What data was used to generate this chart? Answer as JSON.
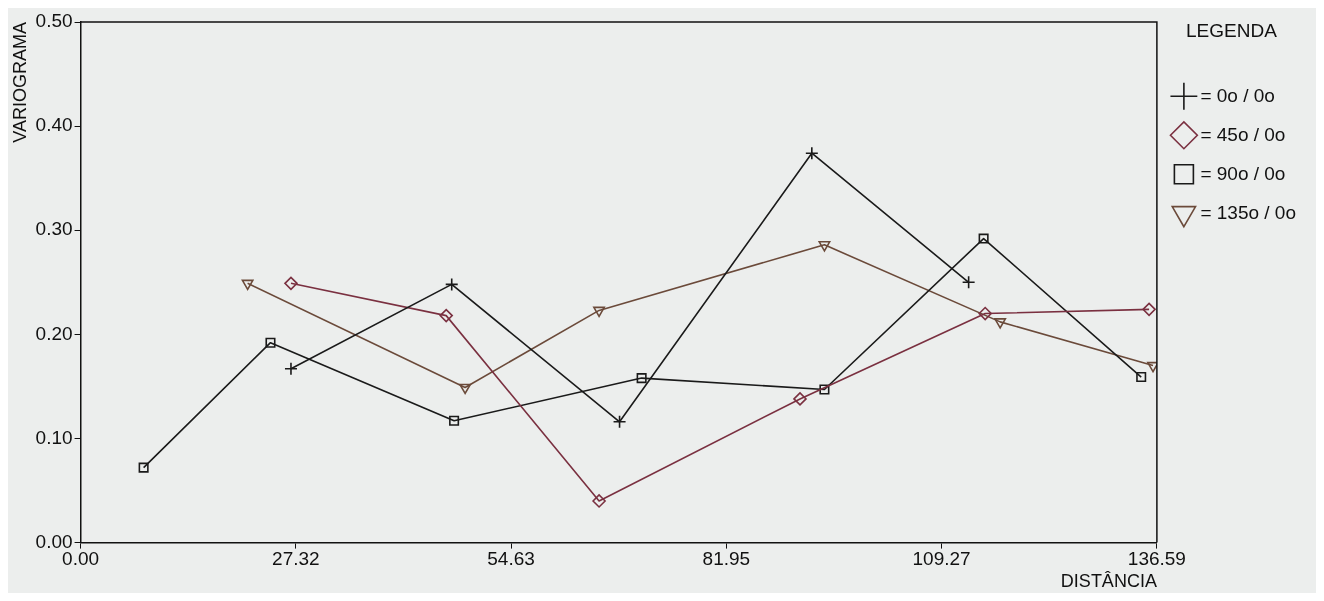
{
  "chart_data": {
    "type": "line",
    "xlabel": "DISTÂNCIA",
    "ylabel": "VARIOGRAMA",
    "legend_title": "LEGENDA",
    "legend": "right",
    "grid": false,
    "line_style": "solid",
    "xlim": [
      0,
      136.59
    ],
    "xticks": [
      {
        "value": 0,
        "label": "0.00"
      },
      27.32,
      54.63,
      81.95,
      109.27,
      136.59
    ],
    "ylim": [
      0,
      0.5
    ],
    "yticks": [
      {
        "value": 0,
        "label": "0.00"
      },
      {
        "value": 0.1,
        "label": "0.10"
      },
      {
        "value": 0.2,
        "label": "0.20"
      },
      {
        "value": 0.3,
        "label": "0.30"
      },
      {
        "value": 0.4,
        "label": "0.40"
      },
      {
        "value": 0.5,
        "label": "0.50"
      }
    ],
    "series": [
      {
        "name": "= 0o / 0o",
        "color": "#1a1a1a",
        "marker": "cross",
        "x": [
          26.7,
          47.1,
          68.4,
          92.8,
          112.7
        ],
        "values": [
          0.167,
          0.248,
          0.116,
          0.374,
          0.25
        ]
      },
      {
        "name": "= 45o / 0o",
        "color": "#7a3040",
        "marker": "diamond",
        "x": [
          26.7,
          46.4,
          65.8,
          91.3,
          114.8,
          135.6
        ],
        "values": [
          0.249,
          0.218,
          0.04,
          0.138,
          0.22,
          0.224
        ]
      },
      {
        "name": "= 90o / 0o",
        "color": "#1a1a1a",
        "marker": "square",
        "x": [
          8.0,
          24.1,
          47.4,
          71.2,
          94.4,
          114.6,
          134.6
        ],
        "values": [
          0.072,
          0.192,
          0.117,
          0.158,
          0.147,
          0.292,
          0.159
        ]
      },
      {
        "name": "= 135o / 0o",
        "color": "#6b4a3a",
        "marker": "triangle",
        "x": [
          21.2,
          48.8,
          65.8,
          94.4,
          116.7,
          136.1
        ],
        "values": [
          0.249,
          0.149,
          0.223,
          0.286,
          0.212,
          0.17
        ]
      }
    ]
  }
}
